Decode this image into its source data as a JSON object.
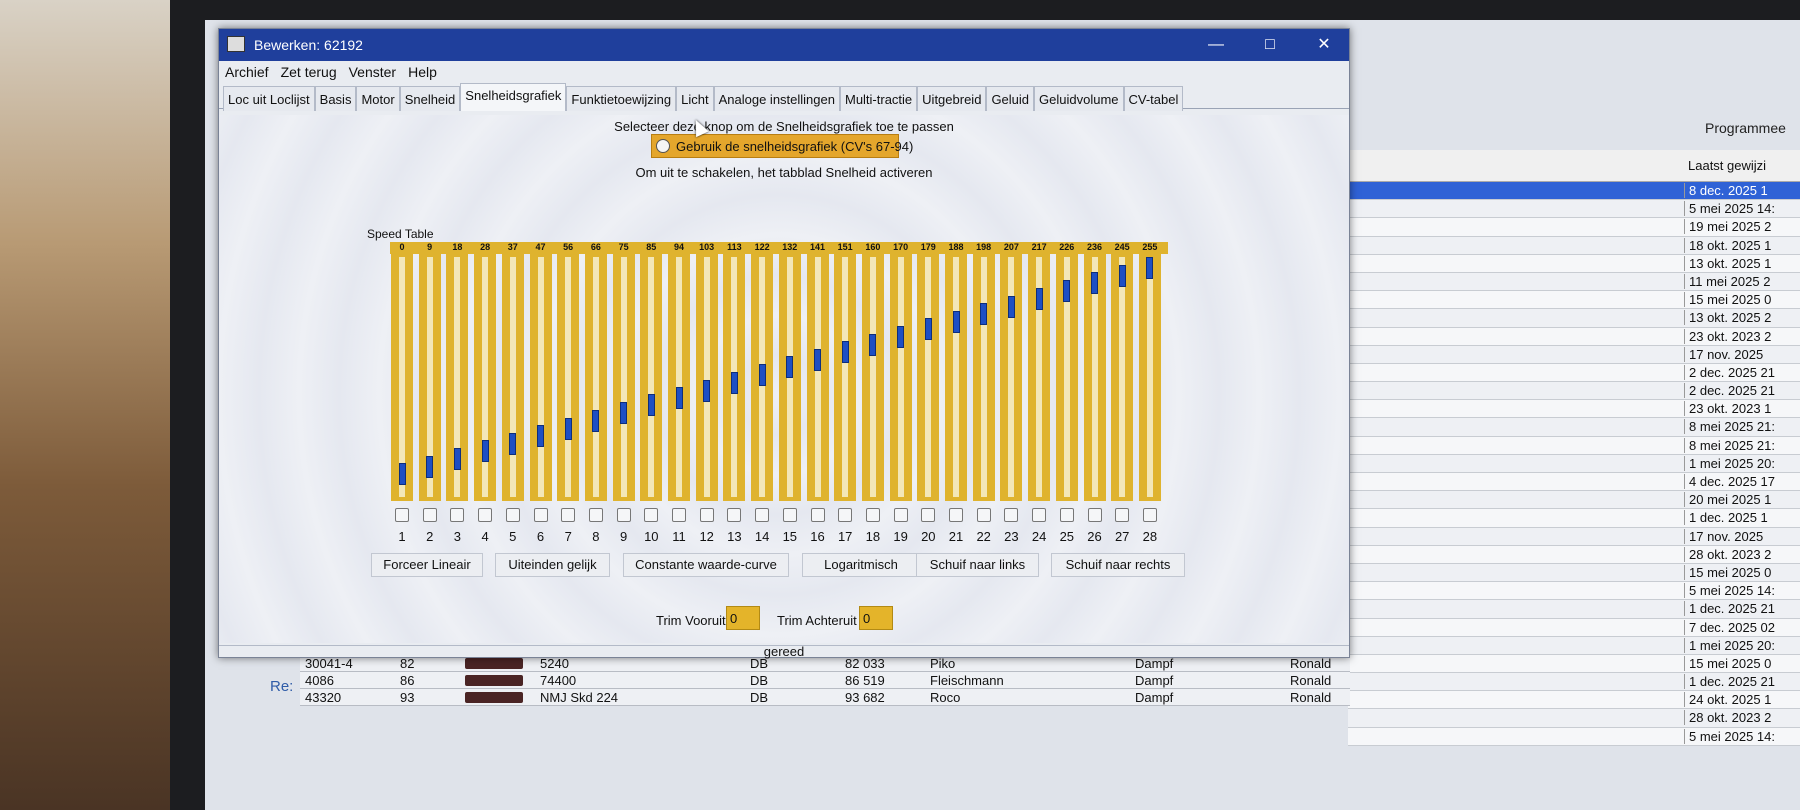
{
  "dialog": {
    "title": "Bewerken: 62192",
    "menu": [
      "Archief",
      "Zet terug",
      "Venster",
      "Help"
    ],
    "tabs": [
      "Loc uit Loclijst",
      "Basis",
      "Motor",
      "Snelheid",
      "Snelheidsgrafiek",
      "Funktietoewijzing",
      "Licht",
      "Analoge instellingen",
      "Multi-tractie",
      "Uitgebreid",
      "Geluid",
      "Geluidvolume",
      "CV-tabel"
    ],
    "active_tab": "Snelheidsgrafiek",
    "hint_top": "Selecteer deze knop om de Snelheidsgrafiek toe te passen",
    "use_table_label": "Gebruik de snelheidsgrafiek (CV's 67-94)",
    "hint_bottom": "Om uit te schakelen, het tabblad Snelheid activeren",
    "speed_table_label": "Speed Table",
    "speed_values": [
      0,
      9,
      18,
      28,
      37,
      47,
      56,
      66,
      75,
      85,
      94,
      103,
      113,
      122,
      132,
      141,
      151,
      160,
      170,
      179,
      188,
      198,
      207,
      217,
      226,
      236,
      245,
      255
    ],
    "step_numbers": [
      "1",
      "2",
      "3",
      "4",
      "5",
      "6",
      "7",
      "8",
      "9",
      "10",
      "11",
      "12",
      "13",
      "14",
      "15",
      "16",
      "17",
      "18",
      "19",
      "20",
      "21",
      "22",
      "23",
      "24",
      "25",
      "26",
      "27",
      "28"
    ],
    "buttons": {
      "force_linear": "Forceer Lineair",
      "match_ends": "Uiteinden gelijk",
      "constant_ratio": "Constante waarde-curve",
      "log": "Logaritmisch",
      "shift_left": "Schuif naar links",
      "shift_right": "Schuif naar rechts"
    },
    "trim": {
      "forward_label": "Trim Vooruit",
      "forward_value": "0",
      "reverse_label": "Trim Achteruit",
      "reverse_value": "0"
    },
    "status": "gereed"
  },
  "background_app": {
    "header": "Programmee",
    "column_header": "Laatst gewijzi",
    "dates": [
      "8 dec. 2025 1",
      "5 mei 2025 14:",
      "19 mei 2025 2",
      "18 okt. 2025 1",
      "13 okt. 2025 1",
      "11 mei 2025 2",
      "15 mei 2025 0",
      "13 okt. 2025 2",
      "23 okt. 2023 2",
      "17 nov. 2025",
      "2 dec. 2025 21",
      "2 dec. 2025 21",
      "23 okt. 2023 1",
      "8 mei 2025 21:",
      "8 mei 2025 21:",
      "1 mei 2025 20:",
      "4 dec. 2025 17",
      "20 mei 2025 1",
      "1 dec. 2025 1",
      "17 nov. 2025",
      "28 okt. 2023 2",
      "15 mei 2025 0",
      "5 mei 2025 14:",
      "1 dec. 2025 21",
      "7 dec. 2025 02",
      "1 mei 2025 20:",
      "15 mei 2025 0",
      "1 dec. 2025 21",
      "24 okt. 2025 1",
      "28 okt. 2023 2",
      "5 mei 2025 14:"
    ],
    "bottom_rows": [
      {
        "id": "30041-4",
        "n": "82",
        "name": "5240",
        "rw": "DB",
        "num": "82 033",
        "brand": "Piko",
        "type": "Dampf",
        "owner": "Ronald"
      },
      {
        "id": "4086",
        "n": "86",
        "name": "74400",
        "rw": "DB",
        "num": "86 519",
        "brand": "Fleischmann",
        "type": "Dampf",
        "owner": "Ronald"
      },
      {
        "id": "43320",
        "n": "93",
        "name": "NMJ Skd 224",
        "rw": "DB",
        "num": "93 682",
        "brand": "Roco",
        "type": "Dampf",
        "owner": "Ronald"
      }
    ],
    "re_label": "Re:"
  }
}
